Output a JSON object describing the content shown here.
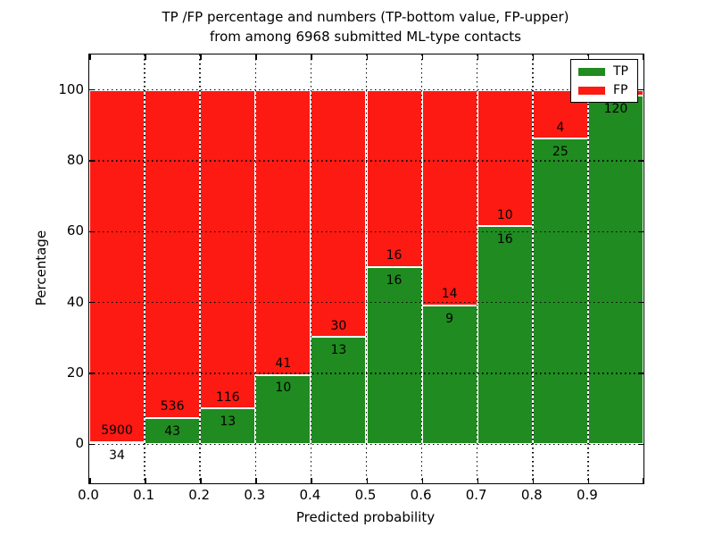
{
  "title": {
    "line1": "TP /FP percentage and numbers (TP-bottom value, FP-upper)",
    "line2": "from among 6968 submitted ML-type contacts"
  },
  "chart_data": {
    "type": "bar",
    "stacked": true,
    "normalized": "each bin scaled to 100%, green TP portion on bottom, red FP on top",
    "title": "TP /FP percentage and numbers (TP-bottom value, FP-upper) from among 6968 submitted ML-type contacts",
    "xlabel": "Predicted probability",
    "ylabel": "Percentage",
    "xlim": [
      0.0,
      1.0
    ],
    "ylim": [
      -11,
      110
    ],
    "xticks": [
      "0.0",
      "0.1",
      "0.2",
      "0.3",
      "0.4",
      "0.5",
      "0.6",
      "0.7",
      "0.8",
      "0.9"
    ],
    "yticks": [
      0,
      20,
      40,
      60,
      80,
      100
    ],
    "grid": {
      "style": "dotted",
      "color": "#000000",
      "drawn_above_bars": true
    },
    "bins": [
      "0.0-0.1",
      "0.1-0.2",
      "0.2-0.3",
      "0.3-0.4",
      "0.4-0.5",
      "0.5-0.6",
      "0.6-0.7",
      "0.7-0.8",
      "0.8-0.9",
      "0.9-1.0"
    ],
    "series": [
      {
        "name": "TP",
        "color": "#208b20",
        "counts": [
          34,
          43,
          13,
          10,
          13,
          16,
          9,
          16,
          25,
          120
        ],
        "labels": [
          "34",
          "43",
          "13",
          "10",
          "13",
          "16",
          "9",
          "16",
          "25",
          "120"
        ]
      },
      {
        "name": "FP",
        "color": "#fc1a13",
        "counts": [
          5900,
          536,
          116,
          41,
          30,
          16,
          14,
          10,
          4,
          2
        ],
        "labels": [
          "5900",
          "536",
          "116",
          "41",
          "30",
          "16",
          "14",
          "10",
          "4",
          ""
        ]
      }
    ],
    "tp_percent": [
      0.57,
      7.43,
      10.08,
      19.61,
      30.23,
      50.0,
      39.13,
      61.54,
      86.21,
      98.36
    ],
    "bar_edge_color": "#ffffff",
    "legend": {
      "position": "upper right",
      "entries": [
        "TP",
        "FP"
      ]
    }
  },
  "colors": {
    "tp": "#208b20",
    "fp": "#fc1a13",
    "background": "#ffffff",
    "axis": "#000000"
  }
}
